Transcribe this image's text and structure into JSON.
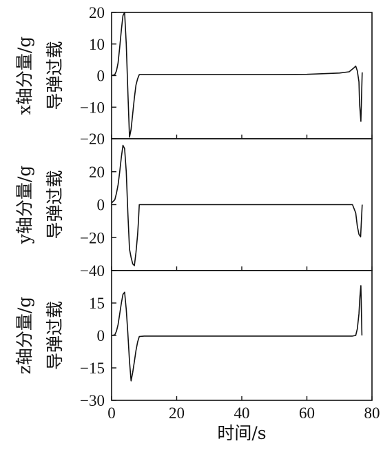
{
  "chart_data": [
    {
      "type": "line",
      "ylabel": [
        "x轴分量/g",
        "导弹过载"
      ],
      "xlim": [
        0,
        80
      ],
      "ylim": [
        -20,
        20
      ],
      "yticks": [
        20,
        10,
        0,
        -10,
        -20
      ],
      "yticks_label": [
        "20",
        "10",
        "0",
        "−10",
        "−20"
      ],
      "series": [
        {
          "x": [
            0,
            1,
            1.5,
            2,
            2.5,
            3,
            3.5,
            4,
            4.5,
            5,
            5.5,
            6,
            6.5,
            7,
            7.5,
            8,
            8.5,
            10,
            20,
            30,
            40,
            50,
            60,
            70,
            73,
            74.5,
            75,
            75.5,
            76,
            76.2,
            76.6,
            77
          ],
          "y": [
            0,
            0.3,
            1.5,
            4,
            9,
            14.5,
            19,
            20,
            10,
            -5,
            -19.5,
            -17,
            -12,
            -7,
            -3,
            -1,
            0.3,
            0.3,
            0.3,
            0.3,
            0.3,
            0.3,
            0.4,
            0.8,
            1.2,
            2.5,
            3,
            1.5,
            -2,
            -9,
            -14.5,
            1
          ]
        }
      ]
    },
    {
      "type": "line",
      "ylabel": [
        "y轴分量/g",
        "导弹过载"
      ],
      "xlim": [
        0,
        80
      ],
      "ylim": [
        -40,
        40
      ],
      "yticks": [
        20,
        0,
        -20,
        -40
      ],
      "yticks_label": [
        "20",
        "0",
        "−20",
        "−40"
      ],
      "series": [
        {
          "x": [
            0,
            1,
            1.5,
            2,
            2.5,
            3,
            3.5,
            4,
            4.5,
            5,
            5.5,
            6,
            6.5,
            7,
            7.5,
            8,
            8.2,
            8.5,
            10,
            20,
            30,
            40,
            50,
            60,
            70,
            74,
            75,
            75.5,
            76,
            76.5,
            77
          ],
          "y": [
            1,
            3,
            7,
            12,
            20,
            29,
            36,
            34,
            20,
            -5,
            -27,
            -32,
            -36,
            -37,
            -29,
            -18,
            -12,
            0,
            0,
            0,
            0,
            0,
            0,
            0,
            0,
            0,
            -5,
            -13,
            -18,
            -19.5,
            0
          ]
        }
      ]
    },
    {
      "type": "line",
      "ylabel": [
        "z轴分量/g",
        "导弹过载"
      ],
      "xlim": [
        0,
        80
      ],
      "ylim": [
        -30,
        30
      ],
      "yticks": [
        15,
        0,
        -15,
        -30
      ],
      "yticks_label": [
        "15",
        "0",
        "−15",
        "−30"
      ],
      "xticks": [
        0,
        20,
        40,
        60,
        80
      ],
      "xlabel": "时间/s",
      "series": [
        {
          "x": [
            0,
            1,
            1.5,
            2,
            2.5,
            3,
            3.5,
            4,
            4.5,
            5,
            5.5,
            6,
            6.5,
            7,
            7.5,
            8,
            8.5,
            10,
            20,
            30,
            40,
            50,
            60,
            70,
            74,
            75,
            75.5,
            76,
            76.3,
            76.6,
            76.9
          ],
          "y": [
            0,
            0.3,
            2,
            5,
            10,
            15,
            19,
            20,
            12,
            1,
            -12,
            -21,
            -17,
            -12,
            -7,
            -3,
            -0.5,
            -0.3,
            -0.3,
            -0.3,
            -0.3,
            -0.3,
            -0.3,
            -0.3,
            -0.3,
            0,
            3,
            10,
            18,
            23,
            0
          ]
        }
      ]
    }
  ]
}
